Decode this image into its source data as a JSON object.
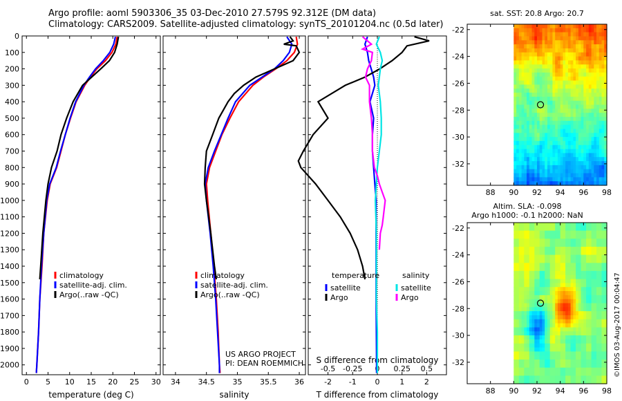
{
  "header": {
    "line1": "Argo profile: aoml 5903306_35 03-Dec-2010 27.579S 92.312E (DM data)",
    "line2": "Climatology: CARS2009. Satellite-adjusted climatology: synTS_20101204.nc (0.5d later)"
  },
  "depth_axis": {
    "ticks": [
      0,
      100,
      200,
      300,
      400,
      500,
      600,
      700,
      800,
      900,
      1000,
      1100,
      1200,
      1300,
      1400,
      1500,
      1600,
      1700,
      1800,
      1900,
      2000
    ],
    "range": [
      0,
      2060
    ]
  },
  "colors": {
    "climatology": "#ff0000",
    "satellite": "#0000ff",
    "argo": "#000000",
    "sat_salinity": "#00e5e5",
    "argo_salinity": "#ff00ff"
  },
  "chart_data": [
    {
      "type": "line",
      "name": "temperature",
      "xlabel": "temperature (deg C)",
      "xlim": [
        -1,
        31
      ],
      "xticks": [
        0,
        5,
        10,
        15,
        20,
        25,
        30
      ],
      "legend": [
        "climatology",
        "satellite-adj. clim.",
        "Argo(..raw -QC)"
      ],
      "series": [
        {
          "name": "climatology",
          "color": "#ff0000",
          "depth": [
            5,
            50,
            100,
            150,
            200,
            250,
            300,
            400,
            500,
            600,
            700,
            800,
            900,
            1000,
            1200,
            1400,
            1600,
            1800,
            2000,
            2050
          ],
          "values": [
            21,
            20.7,
            19.8,
            18.3,
            16.3,
            14.8,
            13.5,
            11.5,
            10.2,
            9.0,
            8.0,
            7.0,
            5.5,
            4.8,
            4.0,
            3.6,
            3.1,
            2.8,
            2.4,
            2.3
          ]
        },
        {
          "name": "satellite-adj. clim.",
          "color": "#0000ff",
          "depth": [
            5,
            50,
            100,
            150,
            200,
            250,
            300,
            400,
            500,
            600,
            700,
            800,
            900,
            1000,
            1200,
            1400,
            1600,
            1800,
            2000,
            2050
          ],
          "values": [
            20.6,
            20.2,
            19.3,
            17.8,
            16.0,
            14.6,
            13.3,
            11.4,
            10.1,
            9.0,
            7.9,
            6.9,
            5.4,
            4.7,
            4.0,
            3.5,
            3.1,
            2.8,
            2.4,
            2.3
          ]
        },
        {
          "name": "Argo(..raw -QC)",
          "color": "#000000",
          "depth": [
            5,
            50,
            100,
            150,
            200,
            250,
            300,
            400,
            500,
            600,
            700,
            800,
            900,
            1000,
            1200,
            1400,
            1480
          ],
          "values": [
            21.3,
            21.0,
            20.4,
            19.2,
            17.2,
            15.1,
            13.0,
            10.8,
            9.3,
            8.0,
            7.1,
            5.8,
            5.0,
            4.5,
            3.8,
            3.3,
            3.1
          ]
        }
      ]
    },
    {
      "type": "line",
      "name": "salinity",
      "xlabel": "salinity",
      "xlim": [
        33.8,
        36.1
      ],
      "xticks": [
        34,
        34.5,
        35,
        35.5,
        36
      ],
      "tick_labels": [
        "34",
        "34.5",
        "35",
        "35.5",
        "36"
      ],
      "legend": [
        "climatology",
        "satellite-adj. clim.",
        "Argo(..raw -QC)"
      ],
      "series": [
        {
          "name": "climatology",
          "color": "#ff0000",
          "depth": [
            5,
            50,
            100,
            150,
            200,
            250,
            300,
            400,
            500,
            600,
            700,
            800,
            900,
            1000,
            1200,
            1400,
            1600,
            1800,
            2000,
            2050
          ],
          "values": [
            35.95,
            35.97,
            35.92,
            35.8,
            35.62,
            35.42,
            35.25,
            35.02,
            34.88,
            34.75,
            34.65,
            34.55,
            34.5,
            34.52,
            34.57,
            34.62,
            34.66,
            34.69,
            34.71,
            34.72
          ]
        },
        {
          "name": "satellite-adj. clim.",
          "color": "#0000ff",
          "depth": [
            5,
            50,
            100,
            150,
            200,
            250,
            300,
            400,
            500,
            600,
            700,
            800,
            900,
            1000,
            1200,
            1400,
            1600,
            1800,
            2000,
            2050
          ],
          "values": [
            35.8,
            35.88,
            35.84,
            35.74,
            35.6,
            35.4,
            35.2,
            34.97,
            34.85,
            34.74,
            34.63,
            34.53,
            34.48,
            34.5,
            34.56,
            34.61,
            34.65,
            34.68,
            34.71,
            34.71
          ]
        },
        {
          "name": "Argo(..raw -QC)",
          "color": "#000000",
          "depth": [
            5,
            30,
            50,
            60,
            100,
            150,
            200,
            250,
            300,
            350,
            400,
            500,
            600,
            700,
            800,
            900,
            1000,
            1200,
            1400,
            1480
          ],
          "values": [
            35.85,
            35.9,
            35.75,
            35.95,
            36.0,
            35.9,
            35.6,
            35.3,
            35.1,
            34.95,
            34.85,
            34.7,
            34.6,
            34.5,
            34.48,
            34.47,
            34.5,
            34.57,
            34.63,
            34.66
          ]
        }
      ]
    },
    {
      "type": "line",
      "name": "difference",
      "xlabel": "T difference from climatology",
      "x2label": "S difference from climatology",
      "xlim": [
        -2.8,
        2.8
      ],
      "xticks": [
        -2,
        -1,
        0,
        1,
        2
      ],
      "s_ticks": [
        -0.5,
        -0.25,
        0,
        0.25,
        0.5
      ],
      "s_tick_labels": [
        "-0.5",
        "-0.25",
        "0",
        "0.25",
        "0.5"
      ],
      "s_scale": 4,
      "legend_heads": [
        "temperature",
        "salinity"
      ],
      "legend": [
        "satellite",
        "Argo",
        "satellite",
        "Argo"
      ],
      "series": [
        {
          "name": "temperature satellite",
          "color": "#0000ff",
          "depth": [
            5,
            50,
            100,
            150,
            200,
            250,
            300,
            400,
            500,
            600,
            700,
            800,
            900,
            1000,
            1200,
            1400,
            1600,
            1800,
            2000,
            2050
          ],
          "values": [
            -0.4,
            -0.5,
            -0.4,
            -0.35,
            -0.25,
            -0.15,
            -0.1,
            -0.3,
            -0.15,
            -0.2,
            -0.2,
            -0.15,
            -0.1,
            -0.05,
            -0.05,
            -0.05,
            -0.05,
            -0.04,
            -0.03,
            -0.03
          ]
        },
        {
          "name": "temperature Argo",
          "color": "#000000",
          "depth": [
            5,
            30,
            60,
            100,
            150,
            200,
            250,
            300,
            400,
            500,
            600,
            700,
            760,
            800,
            850,
            900,
            1000,
            1100,
            1200,
            1300,
            1400,
            1480
          ],
          "values": [
            1.5,
            2.1,
            1.2,
            1.0,
            0.6,
            0.1,
            -0.5,
            -1.3,
            -2.4,
            -2.0,
            -2.6,
            -3.0,
            -3.2,
            -3.1,
            -2.8,
            -2.5,
            -2.0,
            -1.5,
            -1.1,
            -0.8,
            -0.6,
            -0.5
          ]
        },
        {
          "name": "salinity satellite",
          "color": "#00e5e5",
          "depth": [
            5,
            50,
            100,
            150,
            200,
            250,
            300,
            400,
            500,
            600,
            700,
            800,
            900,
            1000,
            1200,
            1400,
            1600,
            1800,
            2000,
            2050
          ],
          "values": [
            0.02,
            -0.01,
            0.03,
            0.05,
            0.03,
            0.02,
            0.01,
            0.03,
            0.04,
            0.04,
            0.02,
            0.0,
            -0.01,
            -0.02,
            -0.01,
            -0.01,
            -0.01,
            0.0,
            0.0,
            0.0
          ]
        },
        {
          "name": "salinity Argo",
          "color": "#ff00ff",
          "depth": [
            5,
            30,
            50,
            80,
            100,
            150,
            200,
            250,
            300,
            400,
            500,
            600,
            700,
            800,
            850,
            900,
            950,
            1000,
            1050,
            1100,
            1150,
            1200,
            1300
          ],
          "values": [
            -0.15,
            -0.1,
            -0.06,
            -0.15,
            -0.05,
            -0.06,
            -0.1,
            -0.12,
            -0.08,
            -0.08,
            -0.06,
            -0.05,
            -0.05,
            -0.03,
            0.0,
            0.02,
            0.05,
            0.08,
            0.07,
            0.06,
            0.05,
            0.03,
            0.02
          ]
        }
      ]
    },
    {
      "type": "heatmap",
      "name": "sst-map",
      "title": "sat. SST: 20.8 Argo: 20.7",
      "xticks": [
        88,
        90,
        92,
        94,
        96,
        98
      ],
      "yticks": [
        -22,
        -24,
        -26,
        -28,
        -30,
        -32
      ],
      "xlim": [
        86,
        98
      ],
      "ylim": [
        -33.6,
        -21.6
      ],
      "data_xlim": [
        90,
        98
      ],
      "marker": {
        "lon": 92.3,
        "lat": -27.6
      }
    },
    {
      "type": "heatmap",
      "name": "sla-map",
      "title": "Altim. SLA: -0.098",
      "subtitle": "Argo h1000: -0.1 h2000: NaN",
      "xticks": [
        88,
        90,
        92,
        94,
        96,
        98
      ],
      "yticks": [
        -22,
        -24,
        -26,
        -28,
        -30,
        -32
      ],
      "xlim": [
        86,
        98
      ],
      "ylim": [
        -33.6,
        -21.6
      ],
      "data_xlim": [
        90,
        98
      ],
      "marker": {
        "lon": 92.3,
        "lat": -27.6
      }
    }
  ],
  "credits": {
    "project": "US ARGO PROJECT",
    "pi": "PI: DEAN ROEMMICH",
    "stamp": "©IMOS 03-Aug-2017 00:04:47"
  }
}
